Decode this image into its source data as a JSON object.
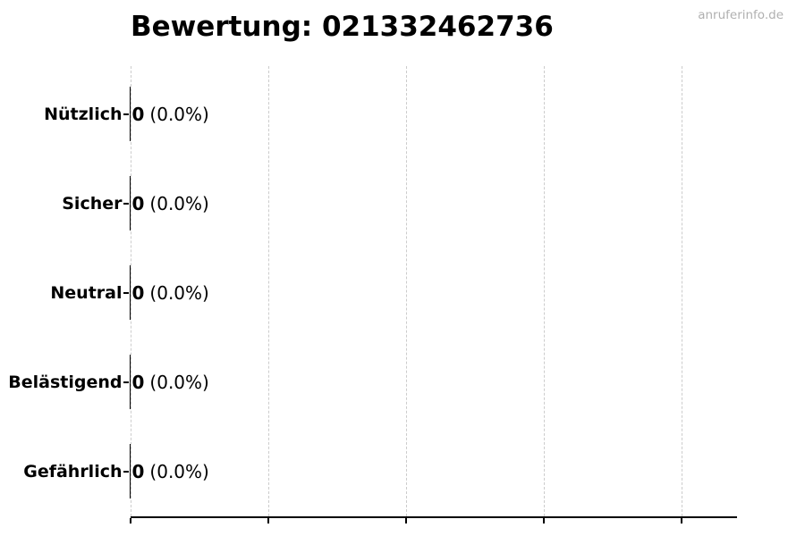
{
  "watermark": {
    "text": "anruferinfo.de",
    "color": "#b0b0b0"
  },
  "chart_data": {
    "type": "bar",
    "orientation": "horizontal",
    "title": "Bewertung: 021332462736",
    "categories": [
      "Nützlich",
      "Sicher",
      "Neutral",
      "Belästigend",
      "Gefährlich"
    ],
    "values": [
      0,
      0,
      0,
      0,
      0
    ],
    "percent_labels": [
      "(0.0%)",
      "(0.0%)",
      "(0.0%)",
      "(0.0%)",
      "(0.0%)"
    ],
    "bar_annotations": [
      "0 (0.0%)",
      "0 (0.0%)",
      "0 (0.0%)",
      "0 (0.0%)",
      "0 (0.0%)"
    ],
    "xlabel": "",
    "ylabel": "",
    "x_tick_labels": [],
    "x_gridline_count": 5,
    "grid": "vertical-dashed",
    "legend": null,
    "colors": {
      "text": "#000000",
      "bar_edge": "#000000",
      "axis": "#000000",
      "gridline": "#cccccc"
    }
  }
}
